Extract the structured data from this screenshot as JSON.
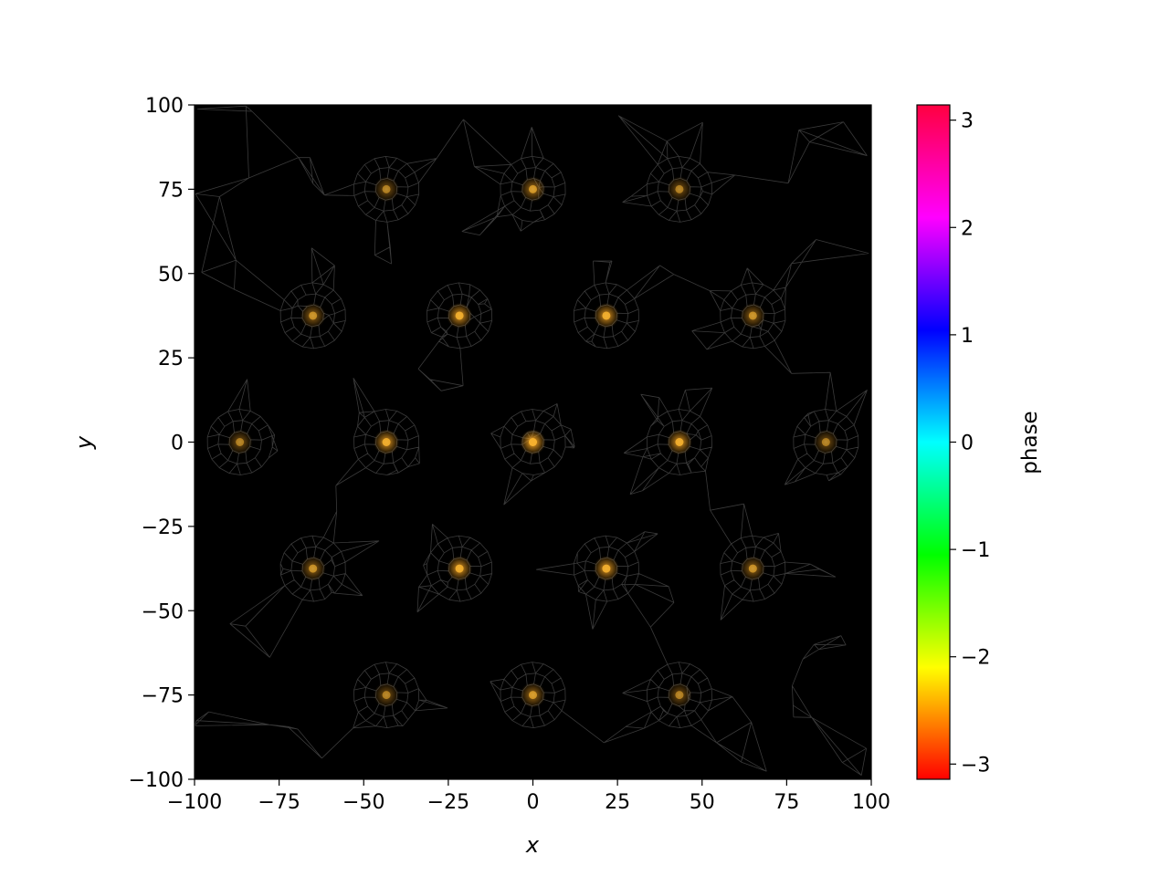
{
  "chart_data": {
    "type": "scatter",
    "title": "",
    "xlabel": "x",
    "ylabel": "y",
    "xlim": [
      -100,
      100
    ],
    "ylim": [
      -100,
      100
    ],
    "xticks": [
      -100,
      -75,
      -50,
      -25,
      0,
      25,
      50,
      75,
      100
    ],
    "yticks": [
      -100,
      -75,
      -50,
      -25,
      0,
      25,
      50,
      75,
      100
    ],
    "xtick_labels": [
      "−100",
      "−75",
      "−50",
      "−25",
      "0",
      "25",
      "50",
      "75",
      "100"
    ],
    "ytick_labels": [
      "−100",
      "−75",
      "−50",
      "−25",
      "0",
      "25",
      "50",
      "75",
      "100"
    ],
    "background_color": "#000000",
    "mesh_color": "#3a3a3a",
    "grid": false,
    "points": [
      {
        "x": -43.3,
        "y": 75,
        "intensity": 0.45
      },
      {
        "x": 0,
        "y": 75,
        "intensity": 0.6
      },
      {
        "x": 43.3,
        "y": 75,
        "intensity": 0.45
      },
      {
        "x": -65,
        "y": 37.5,
        "intensity": 0.55
      },
      {
        "x": -21.7,
        "y": 37.5,
        "intensity": 0.8
      },
      {
        "x": 21.7,
        "y": 37.5,
        "intensity": 0.8
      },
      {
        "x": 65,
        "y": 37.5,
        "intensity": 0.55
      },
      {
        "x": -86.6,
        "y": 0,
        "intensity": 0.45
      },
      {
        "x": -43.3,
        "y": 0,
        "intensity": 0.8
      },
      {
        "x": 0,
        "y": 0,
        "intensity": 0.95
      },
      {
        "x": 43.3,
        "y": 0,
        "intensity": 0.8
      },
      {
        "x": 86.6,
        "y": 0,
        "intensity": 0.45
      },
      {
        "x": -65,
        "y": -37.5,
        "intensity": 0.55
      },
      {
        "x": -21.7,
        "y": -37.5,
        "intensity": 0.8
      },
      {
        "x": 21.7,
        "y": -37.5,
        "intensity": 0.8
      },
      {
        "x": 65,
        "y": -37.5,
        "intensity": 0.55
      },
      {
        "x": -43.3,
        "y": -75,
        "intensity": 0.45
      },
      {
        "x": 0,
        "y": -75,
        "intensity": 0.6
      },
      {
        "x": 43.3,
        "y": -75,
        "intensity": 0.45
      }
    ],
    "point_color": "#f5b02e",
    "colorbar": {
      "label": "phase",
      "range": [
        -3.14159,
        3.14159
      ],
      "ticks": [
        -3,
        -2,
        -1,
        0,
        1,
        2,
        3
      ],
      "tick_labels": [
        "−3",
        "−2",
        "−1",
        "0",
        "1",
        "2",
        "3"
      ],
      "colormap": "hsv"
    }
  }
}
